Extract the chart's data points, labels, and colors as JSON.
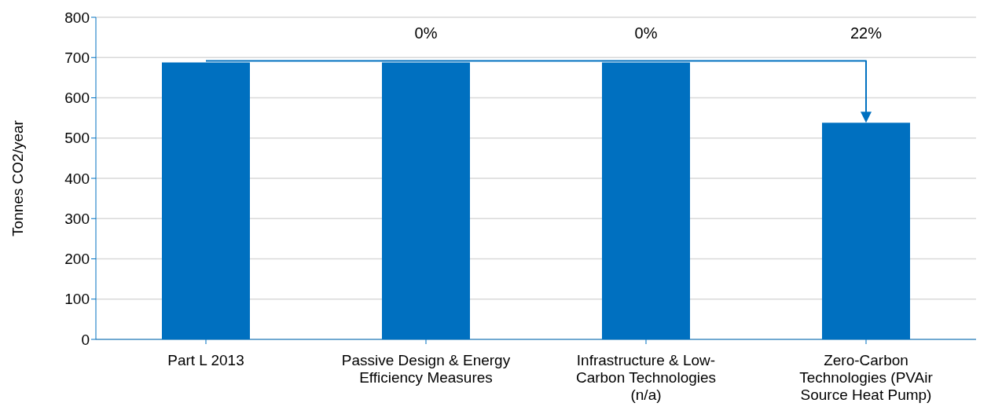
{
  "chart_data": {
    "type": "bar",
    "ylabel": "Tonnes CO2/year",
    "categories": [
      "Part L 2013",
      "Passive Design & Energy Efficiency Measures",
      "Infrastructure & Low-Carbon Technologies (n/a)",
      "Zero-Carbon Technologies (PVAir Source Heat Pump)"
    ],
    "values": [
      688,
      688,
      688,
      538
    ],
    "color": "#0070c0",
    "ylim": [
      0,
      800
    ],
    "yticks": [
      0,
      100,
      200,
      300,
      400,
      500,
      600,
      700,
      800
    ],
    "grid": "y",
    "annotations": [
      "0%",
      "0%",
      "22%"
    ]
  }
}
